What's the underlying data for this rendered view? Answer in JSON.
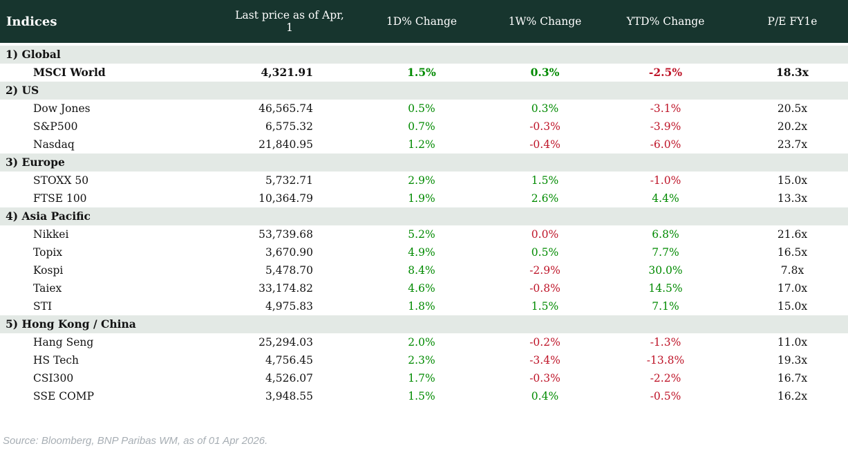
{
  "header": {
    "col_indices": "Indices",
    "col_price": "Last price as of Apr, 1",
    "col_1d": "1D% Change",
    "col_1w": "1W% Change",
    "col_ytd": "YTD% Change",
    "col_pe": "P/E FY1e"
  },
  "colors": {
    "header_bg": "#17352e",
    "section_bg": "#e3e9e5",
    "up": "#008a00",
    "down": "#be1428"
  },
  "sections": [
    {
      "label": "1) Global",
      "rows": [
        {
          "name": "MSCI World",
          "bold": true,
          "price": "4,321.91",
          "d1": [
            "1.5%",
            "up"
          ],
          "w1": [
            "0.3%",
            "up"
          ],
          "ytd": [
            "-2.5%",
            "down"
          ],
          "pe": "18.3x"
        }
      ]
    },
    {
      "label": "2) US",
      "rows": [
        {
          "name": "Dow Jones",
          "price": "46,565.74",
          "d1": [
            "0.5%",
            "up"
          ],
          "w1": [
            "0.3%",
            "up"
          ],
          "ytd": [
            "-3.1%",
            "down"
          ],
          "pe": "20.5x"
        },
        {
          "name": "S&P500",
          "price": "6,575.32",
          "d1": [
            "0.7%",
            "up"
          ],
          "w1": [
            "-0.3%",
            "down"
          ],
          "ytd": [
            "-3.9%",
            "down"
          ],
          "pe": "20.2x"
        },
        {
          "name": "Nasdaq",
          "price": "21,840.95",
          "d1": [
            "1.2%",
            "up"
          ],
          "w1": [
            "-0.4%",
            "down"
          ],
          "ytd": [
            "-6.0%",
            "down"
          ],
          "pe": "23.7x"
        }
      ]
    },
    {
      "label": "3) Europe",
      "rows": [
        {
          "name": "STOXX 50",
          "price": "5,732.71",
          "d1": [
            "2.9%",
            "up"
          ],
          "w1": [
            "1.5%",
            "up"
          ],
          "ytd": [
            "-1.0%",
            "down"
          ],
          "pe": "15.0x"
        },
        {
          "name": "FTSE 100",
          "price": "10,364.79",
          "d1": [
            "1.9%",
            "up"
          ],
          "w1": [
            "2.6%",
            "up"
          ],
          "ytd": [
            "4.4%",
            "up"
          ],
          "pe": "13.3x"
        }
      ]
    },
    {
      "label": "4) Asia Pacific",
      "rows": [
        {
          "name": "Nikkei",
          "price": "53,739.68",
          "d1": [
            "5.2%",
            "up"
          ],
          "w1": [
            "0.0%",
            "down"
          ],
          "ytd": [
            "6.8%",
            "up"
          ],
          "pe": "21.6x"
        },
        {
          "name": "Topix",
          "price": "3,670.90",
          "d1": [
            "4.9%",
            "up"
          ],
          "w1": [
            "0.5%",
            "up"
          ],
          "ytd": [
            "7.7%",
            "up"
          ],
          "pe": "16.5x"
        },
        {
          "name": "Kospi",
          "price": "5,478.70",
          "d1": [
            "8.4%",
            "up"
          ],
          "w1": [
            "-2.9%",
            "down"
          ],
          "ytd": [
            "30.0%",
            "up"
          ],
          "pe": "7.8x"
        },
        {
          "name": "Taiex",
          "price": "33,174.82",
          "d1": [
            "4.6%",
            "up"
          ],
          "w1": [
            "-0.8%",
            "down"
          ],
          "ytd": [
            "14.5%",
            "up"
          ],
          "pe": "17.0x"
        },
        {
          "name": "STI",
          "price": "4,975.83",
          "d1": [
            "1.8%",
            "up"
          ],
          "w1": [
            "1.5%",
            "up"
          ],
          "ytd": [
            "7.1%",
            "up"
          ],
          "pe": "15.0x"
        }
      ]
    },
    {
      "label": "5) Hong Kong / China",
      "rows": [
        {
          "name": "Hang Seng",
          "price": "25,294.03",
          "d1": [
            "2.0%",
            "up"
          ],
          "w1": [
            "-0.2%",
            "down"
          ],
          "ytd": [
            "-1.3%",
            "down"
          ],
          "pe": "11.0x"
        },
        {
          "name": "HS Tech",
          "price": "4,756.45",
          "d1": [
            "2.3%",
            "up"
          ],
          "w1": [
            "-3.4%",
            "down"
          ],
          "ytd": [
            "-13.8%",
            "down"
          ],
          "pe": "19.3x"
        },
        {
          "name": "CSI300",
          "price": "4,526.07",
          "d1": [
            "1.7%",
            "up"
          ],
          "w1": [
            "-0.3%",
            "down"
          ],
          "ytd": [
            "-2.2%",
            "down"
          ],
          "pe": "16.7x"
        },
        {
          "name": "SSE COMP",
          "price": "3,948.55",
          "d1": [
            "1.5%",
            "up"
          ],
          "w1": [
            "0.4%",
            "up"
          ],
          "ytd": [
            "-0.5%",
            "down"
          ],
          "pe": "16.2x"
        }
      ]
    }
  ],
  "footer": {
    "source": "Source: Bloomberg, BNP Paribas WM, as of 01 Apr 2026."
  }
}
